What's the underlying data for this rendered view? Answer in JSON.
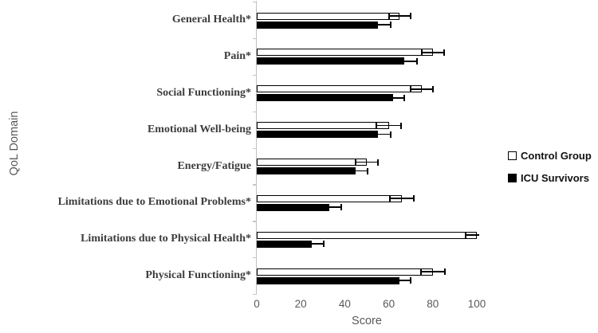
{
  "chart_data": {
    "type": "bar",
    "orientation": "horizontal",
    "title": "",
    "xlabel": "Score",
    "ylabel": "QoL Domain",
    "xlim": [
      0,
      100
    ],
    "xticks": [
      0,
      20,
      40,
      60,
      80,
      100
    ],
    "grid": false,
    "legend_position": "right",
    "categories": [
      "General Health*",
      "Pain*",
      "Social Functioning*",
      "Emotional Well-being",
      "Energy/Fatigue",
      "Limitations due to Emotional Problems*",
      "Limitations due to Physical Health*",
      "Physical Functioning*"
    ],
    "series": [
      {
        "name": "Control Group",
        "fill": "#ffffff",
        "values": [
          65,
          80,
          75,
          60,
          50,
          66,
          100,
          80
        ],
        "errors": [
          5,
          5,
          5,
          5.5,
          5,
          5.5,
          5,
          5.5
        ]
      },
      {
        "name": "ICU Survivors",
        "fill": "#000000",
        "values": [
          55,
          67,
          62,
          55,
          45,
          33,
          25,
          65
        ],
        "errors": [
          6,
          6,
          5,
          6,
          5.5,
          5.5,
          5.5,
          5
        ]
      }
    ],
    "colors": {
      "control_fill": "#ffffff",
      "icu_fill": "#000000",
      "bar_outline": "#000000",
      "axis_line": "#bfbfbf",
      "tick_label": "#595959",
      "category_label": "#3d3d3d"
    }
  }
}
